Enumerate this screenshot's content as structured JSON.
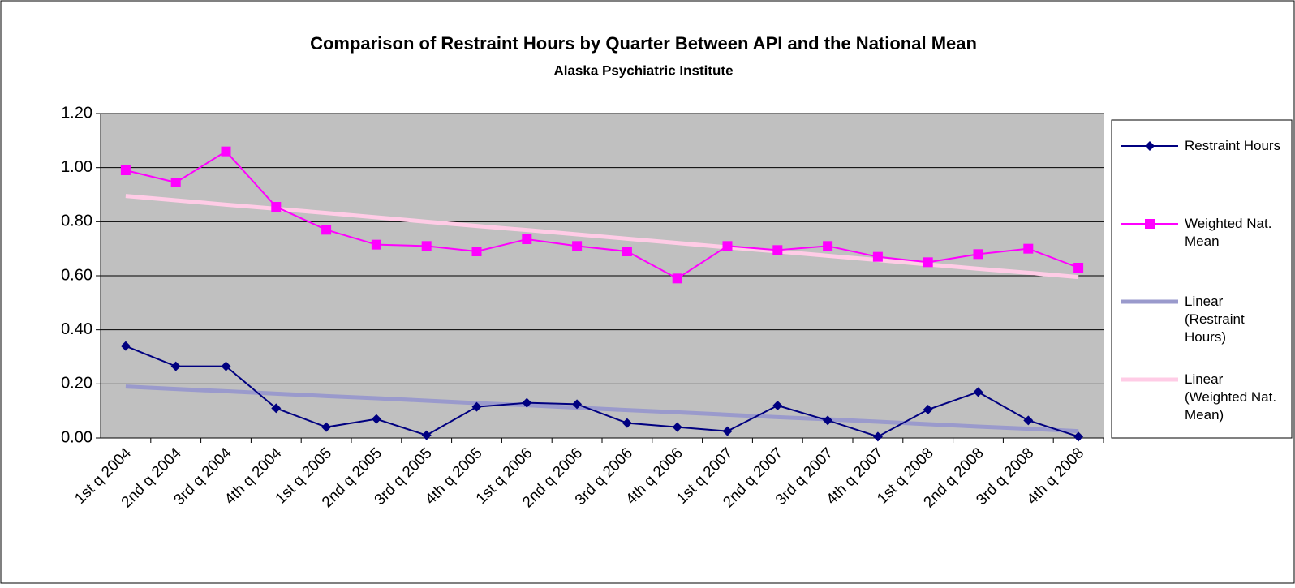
{
  "chart_data": {
    "type": "line",
    "title": "Comparison of Restraint Hours by Quarter Between API and the National Mean",
    "subtitle": "Alaska Psychiatric Institute",
    "categories": [
      "1st q 2004",
      "2nd q 2004",
      "3rd q 2004",
      "4th q 2004",
      "1st q 2005",
      "2nd q 2005",
      "3rd q 2005",
      "4th q 2005",
      "1st q 2006",
      "2nd q 2006",
      "3rd q 2006",
      "4th q 2006",
      "1st q 2007",
      "2nd q 2007",
      "3rd q 2007",
      "4th q 2007",
      "1st q 2008",
      "2nd q 2008",
      "3rd q 2008",
      "4th q 2008"
    ],
    "series": [
      {
        "name": "Restraint Hours",
        "color": "#000080",
        "marker": "diamond",
        "values": [
          0.34,
          0.265,
          0.265,
          0.11,
          0.04,
          0.07,
          0.01,
          0.115,
          0.13,
          0.125,
          0.055,
          0.04,
          0.025,
          0.12,
          0.065,
          0.005,
          0.105,
          0.17,
          0.065,
          0.005
        ]
      },
      {
        "name": "Weighted Nat. Mean",
        "color": "#ff00ff",
        "marker": "square",
        "values": [
          0.99,
          0.945,
          1.06,
          0.855,
          0.77,
          0.715,
          0.71,
          0.69,
          0.735,
          0.71,
          0.69,
          0.59,
          0.71,
          0.695,
          0.71,
          0.67,
          0.65,
          0.68,
          0.7,
          0.63
        ]
      },
      {
        "name": "Linear (Restraint Hours)",
        "color": "#9a9acc",
        "marker": "none",
        "values": [
          0.19,
          0.181,
          0.173,
          0.164,
          0.155,
          0.147,
          0.138,
          0.129,
          0.121,
          0.112,
          0.103,
          0.095,
          0.086,
          0.077,
          0.069,
          0.06,
          0.051,
          0.042,
          0.034,
          0.025
        ]
      },
      {
        "name": "Linear (Weighted Nat. Mean)",
        "color": "#ffcce6",
        "marker": "none",
        "values": [
          0.895,
          0.879,
          0.863,
          0.848,
          0.832,
          0.816,
          0.8,
          0.784,
          0.769,
          0.753,
          0.737,
          0.721,
          0.705,
          0.69,
          0.674,
          0.658,
          0.642,
          0.626,
          0.611,
          0.595
        ]
      }
    ],
    "ylim": [
      0,
      1.2
    ],
    "yticks": [
      {
        "value": 0,
        "label": "0.00"
      },
      {
        "value": 0.2,
        "label": "0.20"
      },
      {
        "value": 0.4,
        "label": "0.40"
      },
      {
        "value": 0.6,
        "label": "0.60"
      },
      {
        "value": 0.8,
        "label": "0.80"
      },
      {
        "value": 1.0,
        "label": "1.00"
      },
      {
        "value": 1.2,
        "label": "1.20"
      }
    ],
    "grid": true,
    "legend": "right"
  }
}
